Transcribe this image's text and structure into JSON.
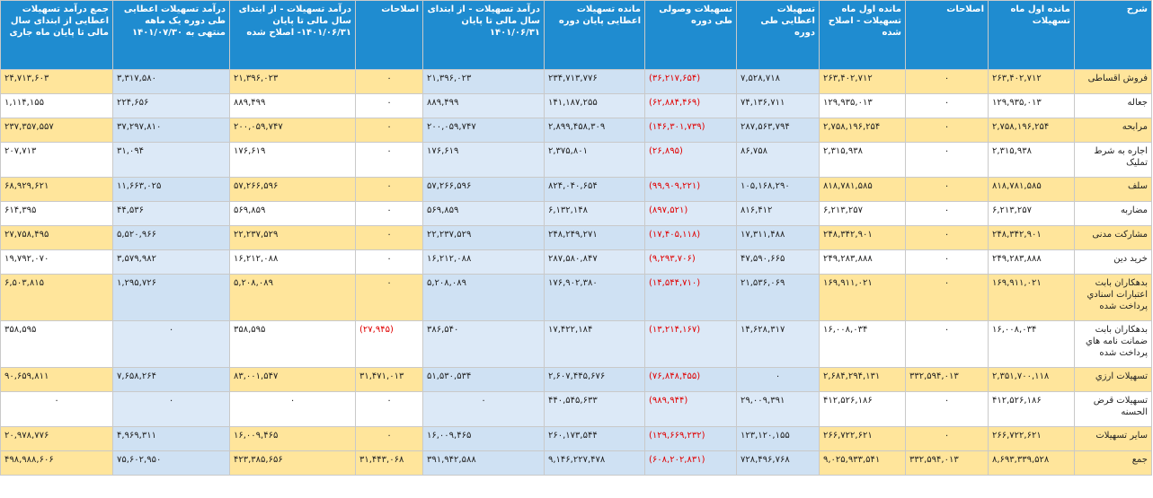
{
  "headers": {
    "c0": "شرح",
    "c1": "مانده اول ماه تسهیلات",
    "c2": "اصلاحات",
    "c3": "مانده اول ماه تسهیلات - اصلاح شده",
    "c4": "تسهیلات اعطایی طی دوره",
    "c5": "تسهیلات وصولی طی دوره",
    "c6": "مانده تسهیلات اعطایی پایان دوره",
    "c7": "درآمد تسهیلات - از ابتدای سال مالی تا پایان ۱۴۰۱/۰۶/۳۱",
    "c8": "اصلاحات",
    "c9": "درآمد تسهیلات - از ابتدای سال مالی تا پایان ۱۴۰۱/۰۶/۳۱- اصلاح شده",
    "c10": "درآمد تسهیلات اعطایی طی دوره یک ماهه منتهی به ۱۴۰۱/۰۷/۳۰",
    "c11": "جمع درآمد تسهیلات اعطایی از ابتدای سال مالی تا پایان ماه جاری"
  },
  "rows": [
    {
      "c0": "فروش اقساطی",
      "c1": "۲۶۳,۴۰۲,۷۱۲",
      "c2": "۰",
      "c3": "۲۶۳,۴۰۲,۷۱۲",
      "c4": "۷,۵۲۸,۷۱۸",
      "c5": "(۳۶,۲۱۷,۶۵۴)",
      "c6": "۲۳۴,۷۱۳,۷۷۶",
      "c7": "۲۱,۳۹۶,۰۲۳",
      "c8": "۰",
      "c9": "۲۱,۳۹۶,۰۲۳",
      "c10": "۳,۳۱۷,۵۸۰",
      "c11": "۲۴,۷۱۳,۶۰۳"
    },
    {
      "c0": "جعاله",
      "c1": "۱۲۹,۹۳۵,۰۱۳",
      "c2": "۰",
      "c3": "۱۲۹,۹۳۵,۰۱۳",
      "c4": "۷۴,۱۳۶,۷۱۱",
      "c5": "(۶۲,۸۸۴,۴۶۹)",
      "c6": "۱۴۱,۱۸۷,۲۵۵",
      "c7": "۸۸۹,۴۹۹",
      "c8": "۰",
      "c9": "۸۸۹,۴۹۹",
      "c10": "۲۲۴,۶۵۶",
      "c11": "۱,۱۱۴,۱۵۵"
    },
    {
      "c0": "مرابحه",
      "c1": "۲,۷۵۸,۱۹۶,۲۵۴",
      "c2": "۰",
      "c3": "۲,۷۵۸,۱۹۶,۲۵۴",
      "c4": "۲۸۷,۵۶۳,۷۹۴",
      "c5": "(۱۴۶,۳۰۱,۷۳۹)",
      "c6": "۲,۸۹۹,۴۵۸,۳۰۹",
      "c7": "۲۰۰,۰۵۹,۷۴۷",
      "c8": "۰",
      "c9": "۲۰۰,۰۵۹,۷۴۷",
      "c10": "۳۷,۲۹۷,۸۱۰",
      "c11": "۲۳۷,۳۵۷,۵۵۷"
    },
    {
      "c0": "اجاره به شرط تملیک",
      "c1": "۲,۳۱۵,۹۳۸",
      "c2": "۰",
      "c3": "۲,۳۱۵,۹۳۸",
      "c4": "۸۶,۷۵۸",
      "c5": "(۲۶,۸۹۵)",
      "c6": "۲,۳۷۵,۸۰۱",
      "c7": "۱۷۶,۶۱۹",
      "c8": "۰",
      "c9": "۱۷۶,۶۱۹",
      "c10": "۳۱,۰۹۴",
      "c11": "۲۰۷,۷۱۳"
    },
    {
      "c0": "سلف",
      "c1": "۸۱۸,۷۸۱,۵۸۵",
      "c2": "۰",
      "c3": "۸۱۸,۷۸۱,۵۸۵",
      "c4": "۱۰۵,۱۶۸,۲۹۰",
      "c5": "(۹۹,۹۰۹,۲۲۱)",
      "c6": "۸۲۴,۰۴۰,۶۵۴",
      "c7": "۵۷,۲۶۶,۵۹۶",
      "c8": "۰",
      "c9": "۵۷,۲۶۶,۵۹۶",
      "c10": "۱۱,۶۶۳,۰۲۵",
      "c11": "۶۸,۹۲۹,۶۲۱"
    },
    {
      "c0": "مضاربه",
      "c1": "۶,۲۱۳,۲۵۷",
      "c2": "۰",
      "c3": "۶,۲۱۳,۲۵۷",
      "c4": "۸۱۶,۴۱۲",
      "c5": "(۸۹۷,۵۲۱)",
      "c6": "۶,۱۳۲,۱۴۸",
      "c7": "۵۶۹,۸۵۹",
      "c8": "۰",
      "c9": "۵۶۹,۸۵۹",
      "c10": "۴۴,۵۳۶",
      "c11": "۶۱۴,۳۹۵"
    },
    {
      "c0": "مشارکت مدنی",
      "c1": "۲۴۸,۳۴۲,۹۰۱",
      "c2": "۰",
      "c3": "۲۴۸,۳۴۲,۹۰۱",
      "c4": "۱۷,۳۱۱,۴۸۸",
      "c5": "(۱۷,۴۰۵,۱۱۸)",
      "c6": "۲۴۸,۲۴۹,۲۷۱",
      "c7": "۲۲,۲۳۷,۵۲۹",
      "c8": "۰",
      "c9": "۲۲,۲۳۷,۵۲۹",
      "c10": "۵,۵۲۰,۹۶۶",
      "c11": "۲۷,۷۵۸,۴۹۵"
    },
    {
      "c0": "خرید دین",
      "c1": "۲۴۹,۲۸۳,۸۸۸",
      "c2": "۰",
      "c3": "۲۴۹,۲۸۳,۸۸۸",
      "c4": "۴۷,۵۹۰,۶۶۵",
      "c5": "(۹,۲۹۳,۷۰۶)",
      "c6": "۲۸۷,۵۸۰,۸۴۷",
      "c7": "۱۶,۲۱۲,۰۸۸",
      "c8": "۰",
      "c9": "۱۶,۲۱۲,۰۸۸",
      "c10": "۳,۵۷۹,۹۸۲",
      "c11": "۱۹,۷۹۲,۰۷۰"
    },
    {
      "c0": "بدهکاران بابت اعتبارات اسنادي پرداخت شده",
      "c1": "۱۶۹,۹۱۱,۰۲۱",
      "c2": "۰",
      "c3": "۱۶۹,۹۱۱,۰۲۱",
      "c4": "۲۱,۵۳۶,۰۶۹",
      "c5": "(۱۴,۵۴۴,۷۱۰)",
      "c6": "۱۷۶,۹۰۲,۳۸۰",
      "c7": "۵,۲۰۸,۰۸۹",
      "c8": "۰",
      "c9": "۵,۲۰۸,۰۸۹",
      "c10": "۱,۲۹۵,۷۲۶",
      "c11": "۶,۵۰۳,۸۱۵"
    },
    {
      "c0": "بدهکاران بابت ضمانت نامه هاي پرداخت شده",
      "c1": "۱۶,۰۰۸,۰۳۴",
      "c2": "۰",
      "c3": "۱۶,۰۰۸,۰۳۴",
      "c4": "۱۴,۶۲۸,۳۱۷",
      "c5": "(۱۳,۲۱۴,۱۶۷)",
      "c6": "۱۷,۴۲۲,۱۸۴",
      "c7": "۳۸۶,۵۴۰",
      "c8": "(۲۷,۹۴۵)",
      "c9": "۳۵۸,۵۹۵",
      "c10": "۰",
      "c11": "۳۵۸,۵۹۵"
    },
    {
      "c0": "تسهیلات ارزي",
      "c1": "۲,۳۵۱,۷۰۰,۱۱۸",
      "c2": "۳۳۲,۵۹۴,۰۱۳",
      "c3": "۲,۶۸۴,۲۹۴,۱۳۱",
      "c4": "۰",
      "c5": "(۷۶,۸۴۸,۴۵۵)",
      "c6": "۲,۶۰۷,۴۴۵,۶۷۶",
      "c7": "۵۱,۵۳۰,۵۳۴",
      "c8": "۳۱,۴۷۱,۰۱۳",
      "c9": "۸۳,۰۰۱,۵۴۷",
      "c10": "۷,۶۵۸,۲۶۴",
      "c11": "۹۰,۶۵۹,۸۱۱"
    },
    {
      "c0": "تسهیلات قرض الحسنه",
      "c1": "۴۱۲,۵۲۶,۱۸۶",
      "c2": "۰",
      "c3": "۴۱۲,۵۲۶,۱۸۶",
      "c4": "۲۹,۰۰۹,۳۹۱",
      "c5": "(۹۸۹,۹۴۴)",
      "c6": "۴۴۰,۵۴۵,۶۳۳",
      "c7": "۰",
      "c8": "۰",
      "c9": "۰",
      "c10": "۰",
      "c11": "۰"
    },
    {
      "c0": "سایر تسهیلات",
      "c1": "۲۶۶,۷۲۲,۶۲۱",
      "c2": "۰",
      "c3": "۲۶۶,۷۲۲,۶۲۱",
      "c4": "۱۲۳,۱۲۰,۱۵۵",
      "c5": "(۱۲۹,۶۶۹,۲۳۲)",
      "c6": "۲۶۰,۱۷۳,۵۴۴",
      "c7": "۱۶,۰۰۹,۴۶۵",
      "c8": "۰",
      "c9": "۱۶,۰۰۹,۴۶۵",
      "c10": "۴,۹۶۹,۳۱۱",
      "c11": "۲۰,۹۷۸,۷۷۶"
    },
    {
      "c0": "جمع",
      "c1": "۸,۶۹۳,۳۳۹,۵۲۸",
      "c2": "۳۳۲,۵۹۴,۰۱۳",
      "c3": "۹,۰۲۵,۹۳۳,۵۴۱",
      "c4": "۷۲۸,۴۹۶,۷۶۸",
      "c5": "(۶۰۸,۲۰۲,۸۳۱)",
      "c6": "۹,۱۴۶,۲۲۷,۴۷۸",
      "c7": "۳۹۱,۹۴۲,۵۸۸",
      "c8": "۳۱,۴۴۳,۰۶۸",
      "c9": "۴۲۳,۳۸۵,۶۵۶",
      "c10": "۷۵,۶۰۲,۹۵۰",
      "c11": "۴۹۸,۹۸۸,۶۰۶"
    }
  ]
}
